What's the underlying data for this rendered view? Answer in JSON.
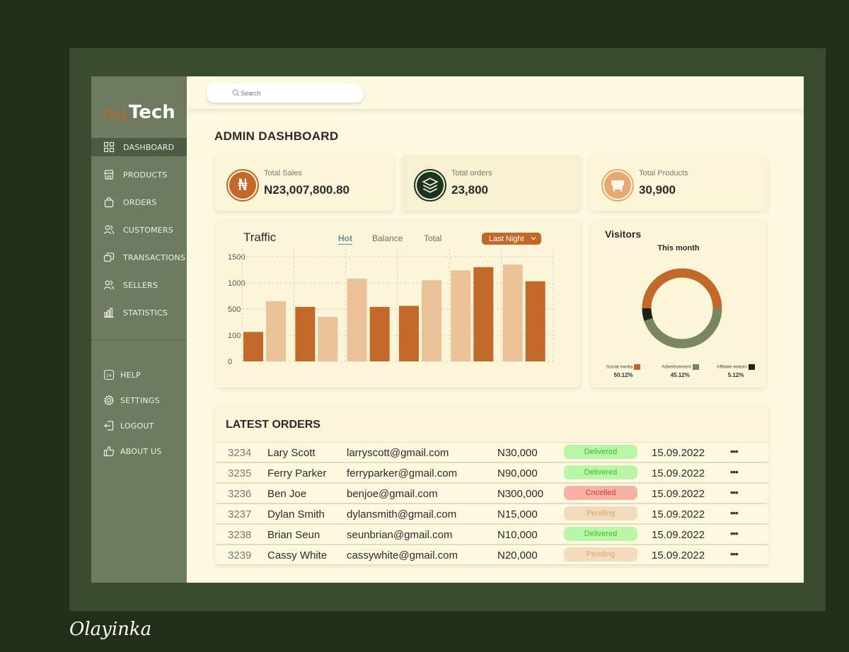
{
  "brand": {
    "part1": "Buy",
    "part2": "Tech"
  },
  "signature": "Olayinka",
  "search": {
    "placeholder": "Search"
  },
  "page_title": "ADMIN DASHBOARD",
  "sidebar": {
    "items": [
      {
        "label": "DASHBOARD",
        "icon": "grid-icon"
      },
      {
        "label": "PRODUCTS",
        "icon": "store-icon"
      },
      {
        "label": "ORDERS",
        "icon": "bag-icon"
      },
      {
        "label": "CUSTOMERS",
        "icon": "users-icon"
      },
      {
        "label": "TRANSACTIONS",
        "icon": "cards-icon"
      },
      {
        "label": "SELLERS",
        "icon": "sellers-icon"
      },
      {
        "label": "STATISTICS",
        "icon": "bar-chart-icon"
      }
    ],
    "bottom_items": [
      {
        "label": "HELP",
        "icon": "support-24-icon"
      },
      {
        "label": "SETTINGS",
        "icon": "gear-icon"
      },
      {
        "label": "LOGOUT",
        "icon": "logout-icon"
      },
      {
        "label": "ABOUT US",
        "icon": "thumbs-up-icon"
      }
    ]
  },
  "stats": [
    {
      "label": "Total Sales",
      "value": "N23,007,800.80",
      "icon": "naira-icon",
      "glyph": "₦"
    },
    {
      "label": "Total orders",
      "value": "23,800",
      "icon": "layers-icon"
    },
    {
      "label": "Total Products",
      "value": "30,900",
      "icon": "store-front-icon"
    }
  ],
  "traffic": {
    "title": "Traffic",
    "tabs": [
      "Hot",
      "Balance",
      "Total"
    ],
    "active_tab": "Hot",
    "range": "Last Night"
  },
  "chart_data": {
    "type": "bar",
    "title": "Traffic",
    "ylabel": "",
    "xlabel": "",
    "y_ticks": [
      "0",
      "100",
      "500",
      "1000",
      "1500"
    ],
    "bars": [
      {
        "value": 150,
        "color": "#c2692a"
      },
      {
        "value": 650,
        "color": "#ebc198"
      },
      {
        "value": 540,
        "color": "#c2692a"
      },
      {
        "value": 380,
        "color": "#ebc198"
      },
      {
        "value": 1080,
        "color": "#ebc198"
      },
      {
        "value": 540,
        "color": "#c2692a"
      },
      {
        "value": 560,
        "color": "#c2692a"
      },
      {
        "value": 1050,
        "color": "#ebc198"
      },
      {
        "value": 1240,
        "color": "#ebc198"
      },
      {
        "value": 1300,
        "color": "#c2692a"
      },
      {
        "value": 1350,
        "color": "#ebc198"
      },
      {
        "value": 1030,
        "color": "#c2692a"
      }
    ]
  },
  "visitors": {
    "title": "Visitors",
    "subtitle": "This month",
    "chart_data": {
      "type": "pie",
      "slices": [
        {
          "label": "Social media",
          "value": 50.12,
          "pct": "50.12%",
          "color": "#c2692a"
        },
        {
          "label": "Advertisement",
          "value": 45.12,
          "pct": "45.12%",
          "color": "#7a8660"
        },
        {
          "label": "Affiliate visitors",
          "value": 5.12,
          "pct": "5.12%",
          "color": "#1e2116"
        }
      ]
    }
  },
  "orders": {
    "title": "LATEST ORDERS",
    "rows": [
      {
        "id": "3234",
        "name": "Lary Scott",
        "email": "larryscott@gmail.com",
        "amount": "N30,000",
        "status": "Delivered",
        "status_type": "delivered",
        "date": "15.09.2022"
      },
      {
        "id": "3235",
        "name": "Ferry Parker",
        "email": "ferryparker@gmail.com",
        "amount": "N90,000",
        "status": "Delivered",
        "status_type": "delivered",
        "date": "15.09.2022"
      },
      {
        "id": "3236",
        "name": "Ben Joe",
        "email": "benjoe@gmail.com",
        "amount": "N300,000",
        "status": "Cncelled",
        "status_type": "cancelled",
        "date": "15.09.2022"
      },
      {
        "id": "3237",
        "name": "Dylan Smith",
        "email": "dylansmith@gmail.com",
        "amount": "N15,000",
        "status": "Pending",
        "status_type": "pending",
        "date": "15.09.2022"
      },
      {
        "id": "3238",
        "name": "Brian Seun",
        "email": "seunbrian@gmail.com",
        "amount": "N10,000",
        "status": "Delivered",
        "status_type": "delivered",
        "date": "15.09.2022"
      },
      {
        "id": "3239",
        "name": "Cassy White",
        "email": "cassywhite@gmail.com",
        "amount": "N20,000",
        "status": "Pending",
        "status_type": "pending",
        "date": "15.09.2022"
      }
    ],
    "more_glyph": "•••"
  },
  "colors": {
    "accent": "#c2692a",
    "sidebar": "#6e7b60",
    "background": "#fdf9e1"
  }
}
